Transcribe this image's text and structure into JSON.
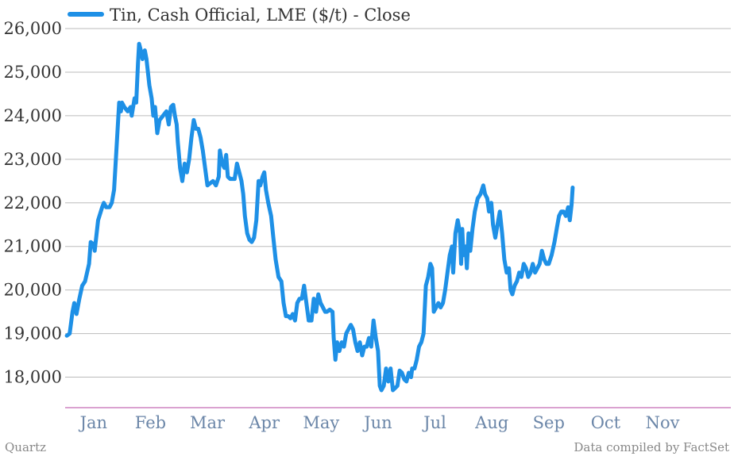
{
  "chart_data": {
    "type": "line",
    "legend": "Tin, Cash Official, LME ($/t) - Close",
    "legend_position": "top-left",
    "series_color": "#1e90e6",
    "grid_color": "#bbbbbb",
    "axis_color": "#c36bb5",
    "ylim": [
      17300,
      26000
    ],
    "yticks": [
      18000,
      19000,
      20000,
      21000,
      22000,
      23000,
      24000,
      25000,
      26000
    ],
    "ytick_labels": [
      "18,000",
      "19,000",
      "20,000",
      "21,000",
      "22,000",
      "23,000",
      "24,000",
      "25,000",
      "26,000"
    ],
    "xlim": [
      0,
      11.7
    ],
    "xticks": [
      0.5,
      1.5,
      2.5,
      3.5,
      4.5,
      5.5,
      6.5,
      7.5,
      8.5,
      9.5,
      10.5
    ],
    "xtick_labels": [
      "Jan",
      "Feb",
      "Mar",
      "Apr",
      "May",
      "Jun",
      "Jul",
      "Aug",
      "Sep",
      "Oct",
      "Nov"
    ],
    "x_unit": "month index (Jan 1 = 0)",
    "points": [
      [
        0.03,
        18950
      ],
      [
        0.08,
        19000
      ],
      [
        0.13,
        19500
      ],
      [
        0.16,
        19700
      ],
      [
        0.2,
        19450
      ],
      [
        0.25,
        19800
      ],
      [
        0.3,
        20100
      ],
      [
        0.35,
        20200
      ],
      [
        0.42,
        20600
      ],
      [
        0.45,
        21100
      ],
      [
        0.5,
        21050
      ],
      [
        0.52,
        20900
      ],
      [
        0.58,
        21600
      ],
      [
        0.65,
        21900
      ],
      [
        0.68,
        22000
      ],
      [
        0.72,
        21900
      ],
      [
        0.78,
        21900
      ],
      [
        0.82,
        22000
      ],
      [
        0.86,
        22300
      ],
      [
        0.9,
        23200
      ],
      [
        0.95,
        24300
      ],
      [
        0.98,
        24100
      ],
      [
        1.0,
        24300
      ],
      [
        1.04,
        24200
      ],
      [
        1.1,
        24100
      ],
      [
        1.15,
        24200
      ],
      [
        1.17,
        24000
      ],
      [
        1.22,
        24400
      ],
      [
        1.25,
        24300
      ],
      [
        1.28,
        25200
      ],
      [
        1.3,
        25650
      ],
      [
        1.33,
        25500
      ],
      [
        1.36,
        25300
      ],
      [
        1.4,
        25500
      ],
      [
        1.43,
        25300
      ],
      [
        1.48,
        24700
      ],
      [
        1.52,
        24400
      ],
      [
        1.55,
        24000
      ],
      [
        1.58,
        24200
      ],
      [
        1.62,
        23600
      ],
      [
        1.66,
        23900
      ],
      [
        1.72,
        24000
      ],
      [
        1.78,
        24100
      ],
      [
        1.82,
        23800
      ],
      [
        1.86,
        24200
      ],
      [
        1.9,
        24250
      ],
      [
        1.93,
        24000
      ],
      [
        1.96,
        23800
      ],
      [
        1.98,
        23400
      ],
      [
        2.02,
        22800
      ],
      [
        2.06,
        22500
      ],
      [
        2.1,
        22900
      ],
      [
        2.14,
        22700
      ],
      [
        2.18,
        23000
      ],
      [
        2.22,
        23500
      ],
      [
        2.26,
        23900
      ],
      [
        2.3,
        23700
      ],
      [
        2.34,
        23700
      ],
      [
        2.38,
        23500
      ],
      [
        2.42,
        23200
      ],
      [
        2.46,
        22800
      ],
      [
        2.5,
        22400
      ],
      [
        2.55,
        22450
      ],
      [
        2.6,
        22500
      ],
      [
        2.65,
        22400
      ],
      [
        2.7,
        22600
      ],
      [
        2.72,
        23200
      ],
      [
        2.76,
        22900
      ],
      [
        2.8,
        22800
      ],
      [
        2.83,
        23100
      ],
      [
        2.86,
        22600
      ],
      [
        2.9,
        22550
      ],
      [
        2.95,
        22550
      ],
      [
        2.98,
        22550
      ],
      [
        3.02,
        22900
      ],
      [
        3.06,
        22700
      ],
      [
        3.1,
        22500
      ],
      [
        3.13,
        22200
      ],
      [
        3.16,
        21700
      ],
      [
        3.2,
        21300
      ],
      [
        3.24,
        21150
      ],
      [
        3.28,
        21100
      ],
      [
        3.32,
        21200
      ],
      [
        3.36,
        21600
      ],
      [
        3.4,
        22500
      ],
      [
        3.43,
        22400
      ],
      [
        3.47,
        22600
      ],
      [
        3.5,
        22700
      ],
      [
        3.53,
        22300
      ],
      [
        3.57,
        22000
      ],
      [
        3.62,
        21700
      ],
      [
        3.66,
        21200
      ],
      [
        3.7,
        20700
      ],
      [
        3.75,
        20300
      ],
      [
        3.8,
        20200
      ],
      [
        3.84,
        19700
      ],
      [
        3.88,
        19400
      ],
      [
        3.92,
        19400
      ],
      [
        3.96,
        19350
      ],
      [
        4.0,
        19450
      ],
      [
        4.04,
        19300
      ],
      [
        4.08,
        19700
      ],
      [
        4.12,
        19800
      ],
      [
        4.16,
        19800
      ],
      [
        4.2,
        20100
      ],
      [
        4.24,
        19700
      ],
      [
        4.28,
        19300
      ],
      [
        4.33,
        19300
      ],
      [
        4.37,
        19800
      ],
      [
        4.41,
        19500
      ],
      [
        4.45,
        19900
      ],
      [
        4.49,
        19700
      ],
      [
        4.53,
        19600
      ],
      [
        4.57,
        19500
      ],
      [
        4.6,
        19500
      ],
      [
        4.65,
        19550
      ],
      [
        4.7,
        19500
      ],
      [
        4.72,
        18900
      ],
      [
        4.75,
        18400
      ],
      [
        4.78,
        18800
      ],
      [
        4.82,
        18600
      ],
      [
        4.86,
        18800
      ],
      [
        4.9,
        18700
      ],
      [
        4.94,
        19000
      ],
      [
        4.98,
        19100
      ],
      [
        5.02,
        19200
      ],
      [
        5.06,
        19100
      ],
      [
        5.1,
        18800
      ],
      [
        5.14,
        18600
      ],
      [
        5.18,
        18800
      ],
      [
        5.22,
        18500
      ],
      [
        5.26,
        18700
      ],
      [
        5.3,
        18700
      ],
      [
        5.34,
        18900
      ],
      [
        5.38,
        18700
      ],
      [
        5.42,
        19300
      ],
      [
        5.46,
        18900
      ],
      [
        5.5,
        18600
      ],
      [
        5.53,
        17800
      ],
      [
        5.56,
        17700
      ],
      [
        5.6,
        17800
      ],
      [
        5.64,
        18200
      ],
      [
        5.68,
        17900
      ],
      [
        5.72,
        18200
      ],
      [
        5.76,
        17700
      ],
      [
        5.8,
        17750
      ],
      [
        5.84,
        17800
      ],
      [
        5.88,
        18150
      ],
      [
        5.92,
        18100
      ],
      [
        5.96,
        17950
      ],
      [
        6.0,
        17900
      ],
      [
        6.04,
        18100
      ],
      [
        6.08,
        18000
      ],
      [
        6.1,
        18200
      ],
      [
        6.14,
        18200
      ],
      [
        6.18,
        18400
      ],
      [
        6.22,
        18700
      ],
      [
        6.26,
        18800
      ],
      [
        6.3,
        19000
      ],
      [
        6.34,
        20100
      ],
      [
        6.38,
        20300
      ],
      [
        6.42,
        20600
      ],
      [
        6.45,
        20500
      ],
      [
        6.48,
        19500
      ],
      [
        6.52,
        19600
      ],
      [
        6.56,
        19700
      ],
      [
        6.6,
        19600
      ],
      [
        6.64,
        19700
      ],
      [
        6.68,
        20000
      ],
      [
        6.72,
        20400
      ],
      [
        6.76,
        20800
      ],
      [
        6.8,
        21000
      ],
      [
        6.82,
        20400
      ],
      [
        6.86,
        21300
      ],
      [
        6.9,
        21600
      ],
      [
        6.94,
        21300
      ],
      [
        6.96,
        20600
      ],
      [
        6.98,
        21400
      ],
      [
        7.0,
        20800
      ],
      [
        7.04,
        21000
      ],
      [
        7.06,
        20500
      ],
      [
        7.09,
        21300
      ],
      [
        7.12,
        20900
      ],
      [
        7.16,
        21400
      ],
      [
        7.2,
        21800
      ],
      [
        7.25,
        22100
      ],
      [
        7.3,
        22200
      ],
      [
        7.35,
        22400
      ],
      [
        7.38,
        22200
      ],
      [
        7.42,
        22100
      ],
      [
        7.45,
        21800
      ],
      [
        7.49,
        22000
      ],
      [
        7.52,
        21500
      ],
      [
        7.56,
        21200
      ],
      [
        7.6,
        21500
      ],
      [
        7.64,
        21800
      ],
      [
        7.68,
        21300
      ],
      [
        7.72,
        20700
      ],
      [
        7.76,
        20400
      ],
      [
        7.8,
        20500
      ],
      [
        7.83,
        20000
      ],
      [
        7.86,
        19900
      ],
      [
        7.9,
        20100
      ],
      [
        7.94,
        20200
      ],
      [
        7.98,
        20400
      ],
      [
        8.02,
        20300
      ],
      [
        8.06,
        20600
      ],
      [
        8.1,
        20500
      ],
      [
        8.14,
        20300
      ],
      [
        8.18,
        20400
      ],
      [
        8.22,
        20600
      ],
      [
        8.26,
        20400
      ],
      [
        8.3,
        20500
      ],
      [
        8.34,
        20600
      ],
      [
        8.38,
        20900
      ],
      [
        8.42,
        20700
      ],
      [
        8.46,
        20600
      ],
      [
        8.5,
        20600
      ],
      [
        8.55,
        20800
      ],
      [
        8.6,
        21100
      ],
      [
        8.64,
        21400
      ],
      [
        8.68,
        21700
      ],
      [
        8.72,
        21800
      ],
      [
        8.76,
        21800
      ],
      [
        8.8,
        21700
      ],
      [
        8.84,
        21900
      ],
      [
        8.87,
        21600
      ],
      [
        8.9,
        21950
      ],
      [
        8.92,
        22350
      ]
    ]
  },
  "footer": {
    "left": "Quartz",
    "right": "Data compiled by FactSet"
  }
}
